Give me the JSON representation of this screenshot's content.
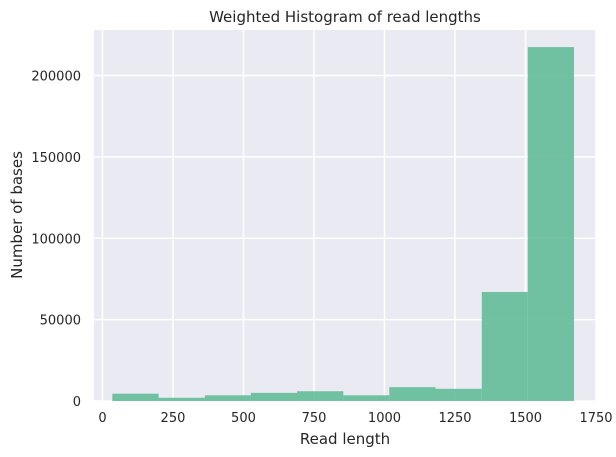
{
  "chart_data": {
    "type": "bar",
    "title": "Weighted Histogram of read lengths",
    "xlabel": "Read length",
    "ylabel": "Number of bases",
    "xlim": [
      -30,
      1750
    ],
    "ylim": [
      0,
      228000
    ],
    "x_ticks": [
      0,
      250,
      500,
      750,
      1000,
      1250,
      1500,
      1750
    ],
    "x_tick_labels": [
      "0",
      "250",
      "500",
      "750",
      "1000",
      "1250",
      "1500",
      "1750"
    ],
    "y_ticks": [
      0,
      50000,
      100000,
      150000,
      200000
    ],
    "y_tick_labels": [
      "0",
      "50000",
      "100000",
      "150000",
      "200000"
    ],
    "grid": true,
    "legend": "none",
    "colors": {
      "bar": "#5fba96",
      "background": "#eaeaf2",
      "grid": "#ffffff"
    },
    "bins": [
      {
        "start": 35,
        "end": 199,
        "value": 4500
      },
      {
        "start": 199,
        "end": 363,
        "value": 2000
      },
      {
        "start": 363,
        "end": 526,
        "value": 3500
      },
      {
        "start": 526,
        "end": 690,
        "value": 5000
      },
      {
        "start": 690,
        "end": 854,
        "value": 6000
      },
      {
        "start": 854,
        "end": 1017,
        "value": 3500
      },
      {
        "start": 1017,
        "end": 1181,
        "value": 8500
      },
      {
        "start": 1181,
        "end": 1345,
        "value": 7500
      },
      {
        "start": 1345,
        "end": 1508,
        "value": 67000
      },
      {
        "start": 1508,
        "end": 1672,
        "value": 217500
      }
    ]
  }
}
